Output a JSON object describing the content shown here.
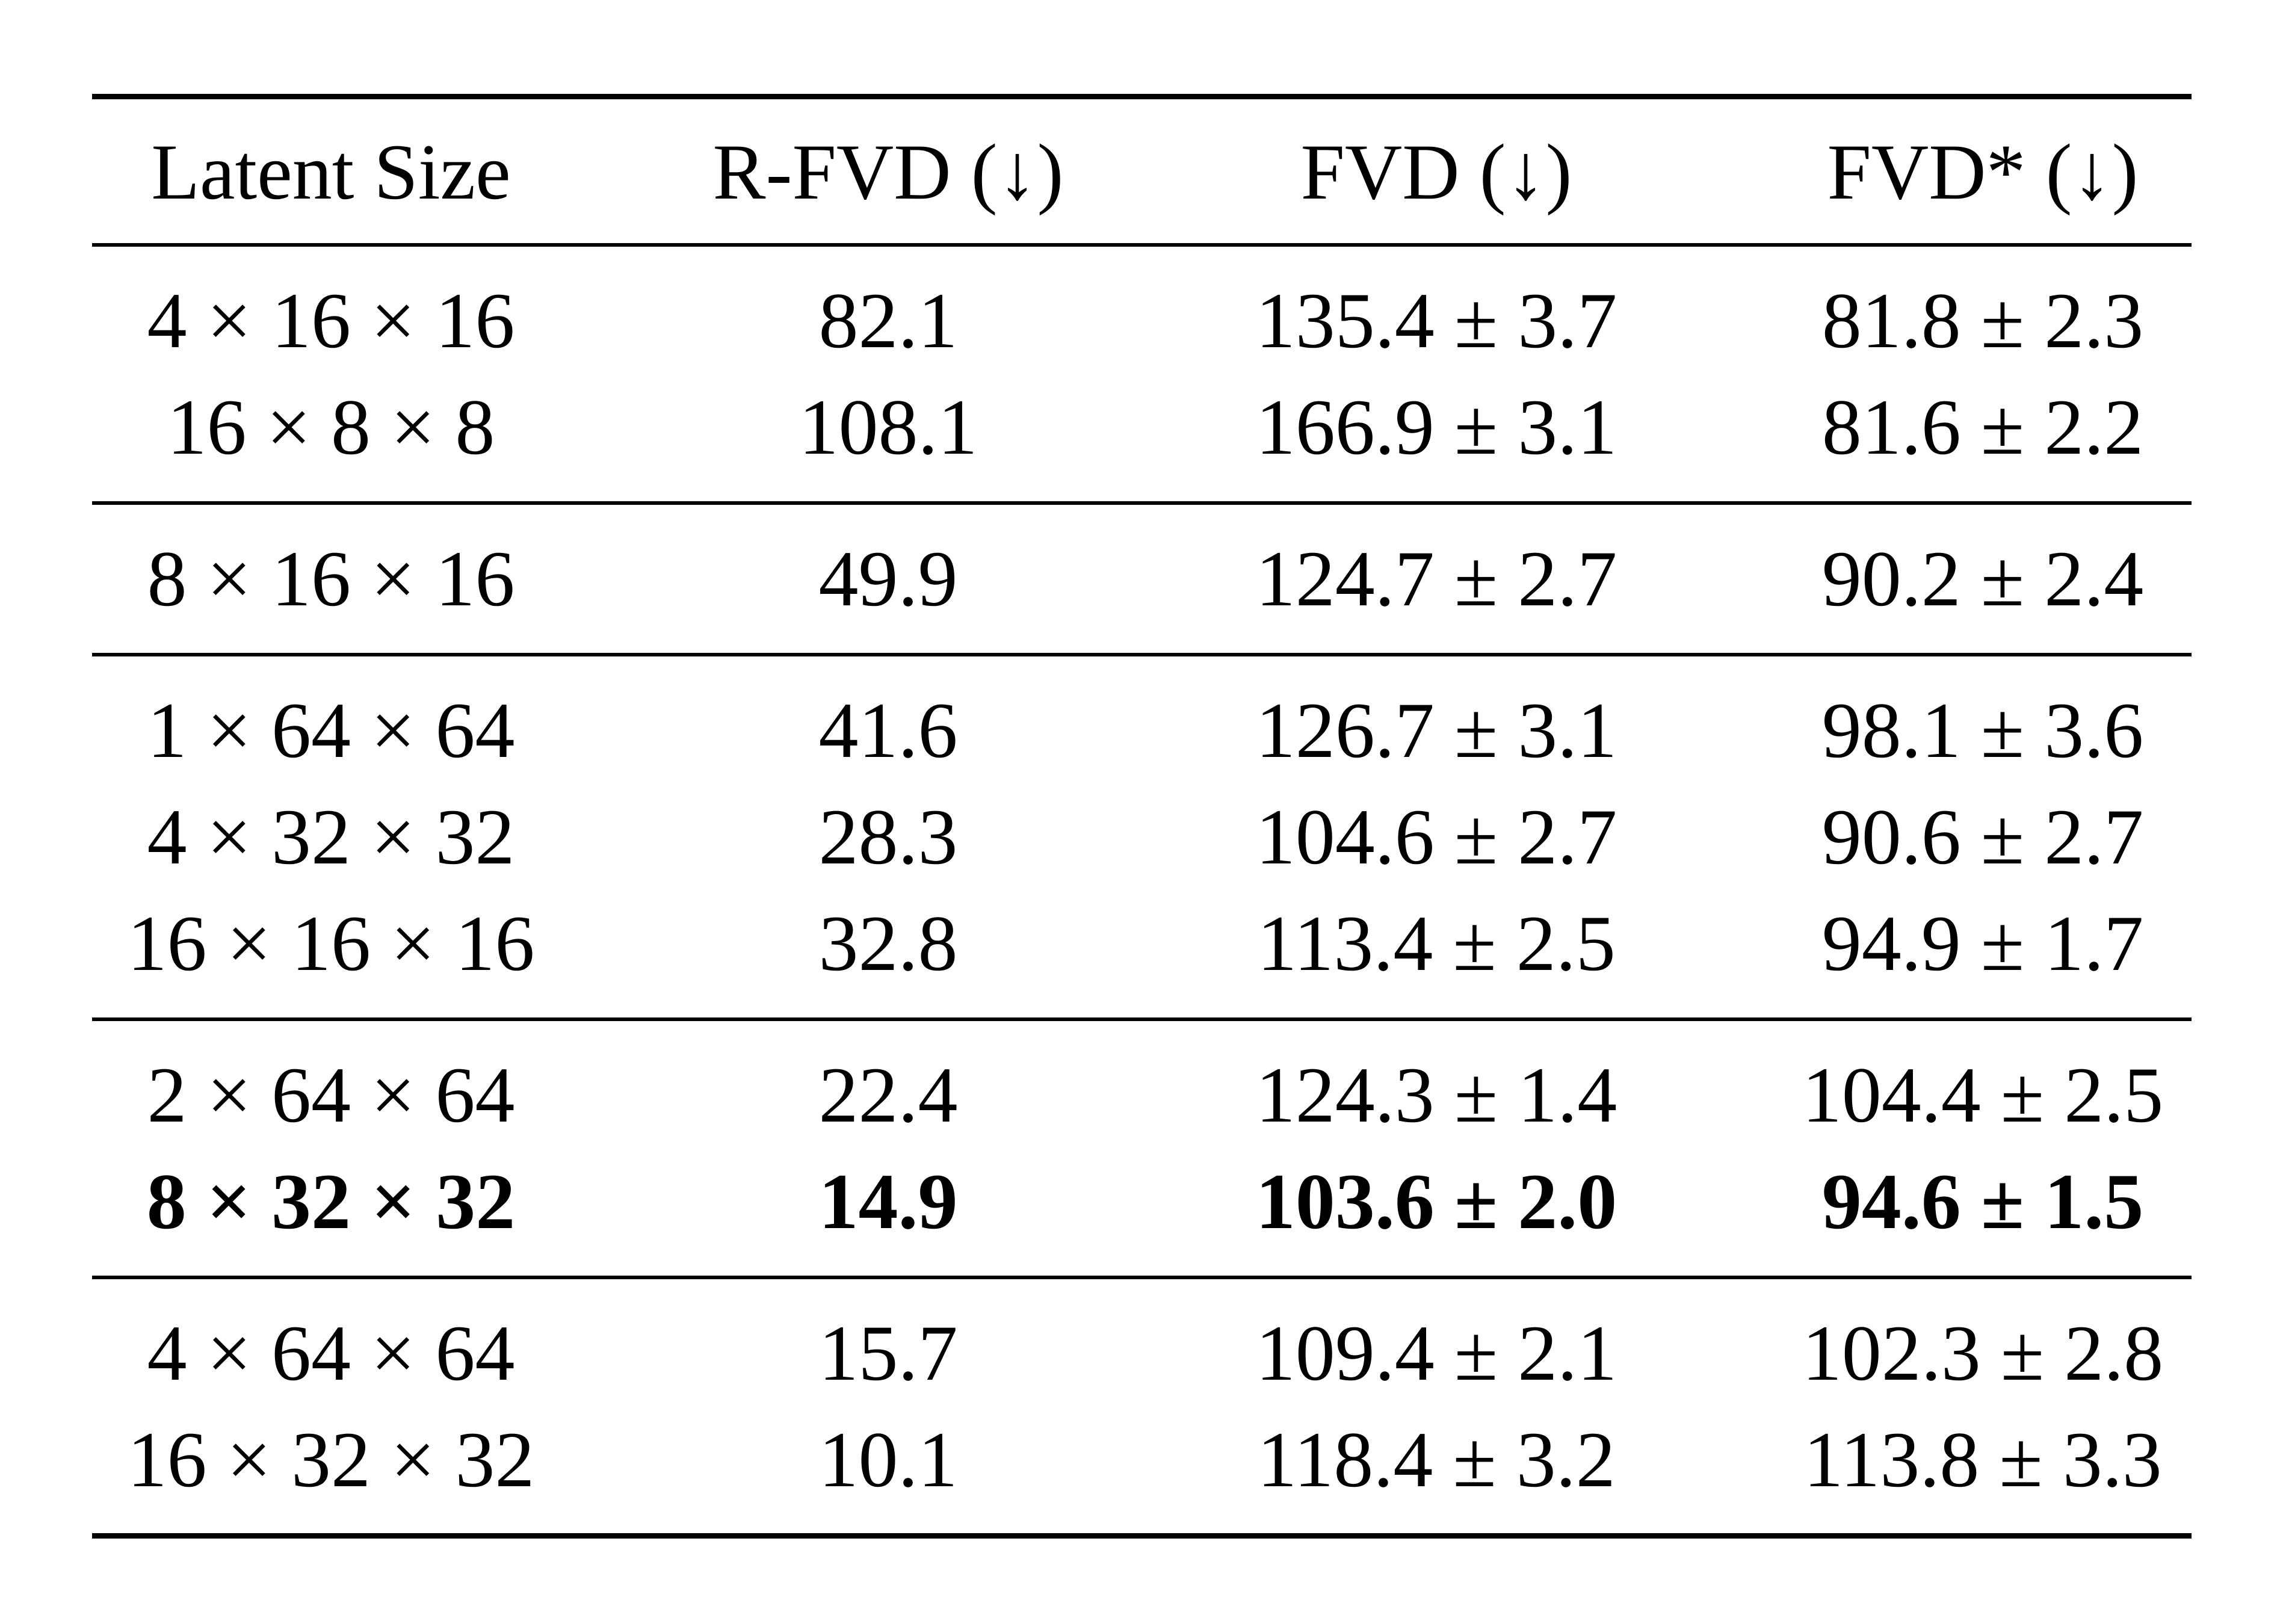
{
  "table": {
    "header": [
      "Latent Size",
      "R-FVD (↓)",
      "FVD (↓)",
      "FVD* (↓)"
    ],
    "groups": [
      [
        {
          "cells": [
            "4 × 16 × 16",
            "82.1",
            "135.4 ± 3.7",
            "81.8 ± 2.3"
          ]
        },
        {
          "cells": [
            "16 × 8 × 8",
            "108.1",
            "166.9 ± 3.1",
            "81.6 ± 2.2"
          ]
        }
      ],
      [
        {
          "cells": [
            "8 × 16 × 16",
            "49.9",
            "124.7 ± 2.7",
            "90.2 ± 2.4"
          ]
        }
      ],
      [
        {
          "cells": [
            "1 × 64 × 64",
            "41.6",
            "126.7 ± 3.1",
            "98.1 ± 3.6"
          ]
        },
        {
          "cells": [
            "4 × 32 × 32",
            "28.3",
            "104.6 ± 2.7",
            "90.6 ± 2.7"
          ]
        },
        {
          "cells": [
            "16 × 16 × 16",
            "32.8",
            "113.4 ± 2.5",
            "94.9 ± 1.7"
          ]
        }
      ],
      [
        {
          "cells": [
            "2 × 64 × 64",
            "22.4",
            "124.3 ± 1.4",
            "104.4 ± 2.5"
          ]
        },
        {
          "cells": [
            "8 × 32 × 32",
            "14.9",
            "103.6 ± 2.0",
            "94.6 ± 1.5"
          ],
          "bold": true
        }
      ],
      [
        {
          "cells": [
            "4 × 64 × 64",
            "15.7",
            "109.4 ± 2.1",
            "102.3 ± 2.8"
          ]
        },
        {
          "cells": [
            "16 × 32 × 32",
            "10.1",
            "118.4 ± 3.2",
            "113.8 ± 3.3"
          ]
        }
      ]
    ]
  }
}
